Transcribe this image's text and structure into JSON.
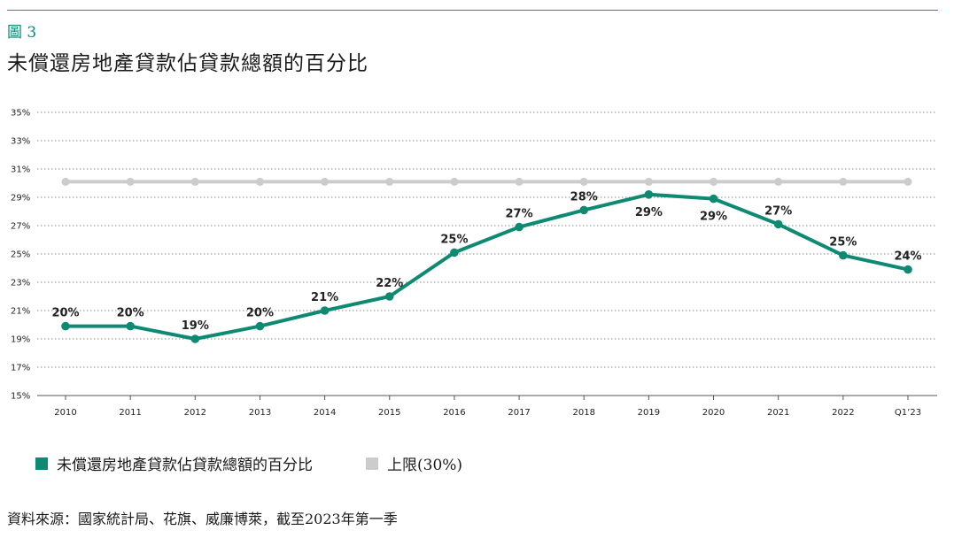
{
  "figure_label": "圖 3",
  "title": "未償還房地產貸款佔貸款總額的百分比",
  "source": "資料來源：國家統計局、花旗、威廉博萊，截至2023年第一季",
  "colors": {
    "series": "#0f8a72",
    "cap": "#cccccc",
    "grid": "#888888",
    "accent": "#0b8a74"
  },
  "chart_data": {
    "type": "line",
    "title": "未償還房地產貸款佔貸款總額的百分比",
    "categories": [
      "2010",
      "2011",
      "2012",
      "2013",
      "2014",
      "2015",
      "2016",
      "2017",
      "2018",
      "2019",
      "2020",
      "2021",
      "2022",
      "Q1’23"
    ],
    "ylim": [
      15,
      35
    ],
    "yticks": [
      15,
      17,
      19,
      21,
      23,
      25,
      27,
      29,
      31,
      33,
      35
    ],
    "ytick_labels": [
      "15%",
      "17%",
      "19%",
      "21%",
      "23%",
      "25%",
      "27%",
      "29%",
      "31%",
      "33%",
      "35%"
    ],
    "grid": "horizontal dotted",
    "legend_position": "bottom-left",
    "series": [
      {
        "name": "未償還房地產貸款佔貸款總額的百分比",
        "color": "#0f8a72",
        "values": [
          19.9,
          19.9,
          19.0,
          19.9,
          21.0,
          22.0,
          25.1,
          26.9,
          28.1,
          29.2,
          28.9,
          27.1,
          24.9,
          23.9
        ],
        "labels": [
          "20%",
          "20%",
          "19%",
          "20%",
          "21%",
          "22%",
          "25%",
          "27%",
          "28%",
          "29%",
          "29%",
          "27%",
          "25%",
          "24%"
        ],
        "label_position": [
          "above",
          "above",
          "above",
          "above",
          "above",
          "above",
          "above",
          "above",
          "above",
          "below",
          "below",
          "above",
          "above",
          "above"
        ]
      },
      {
        "name": "上限(30%)",
        "color": "#cccccc",
        "values": [
          30.1,
          30.1,
          30.1,
          30.1,
          30.1,
          30.1,
          30.1,
          30.1,
          30.1,
          30.1,
          30.1,
          30.1,
          30.1,
          30.1
        ]
      }
    ]
  },
  "legend": [
    {
      "label": "未償還房地產貸款佔貸款總額的百分比",
      "color": "#0f8a72"
    },
    {
      "label": "上限(30%)",
      "color": "#cccccc"
    }
  ]
}
